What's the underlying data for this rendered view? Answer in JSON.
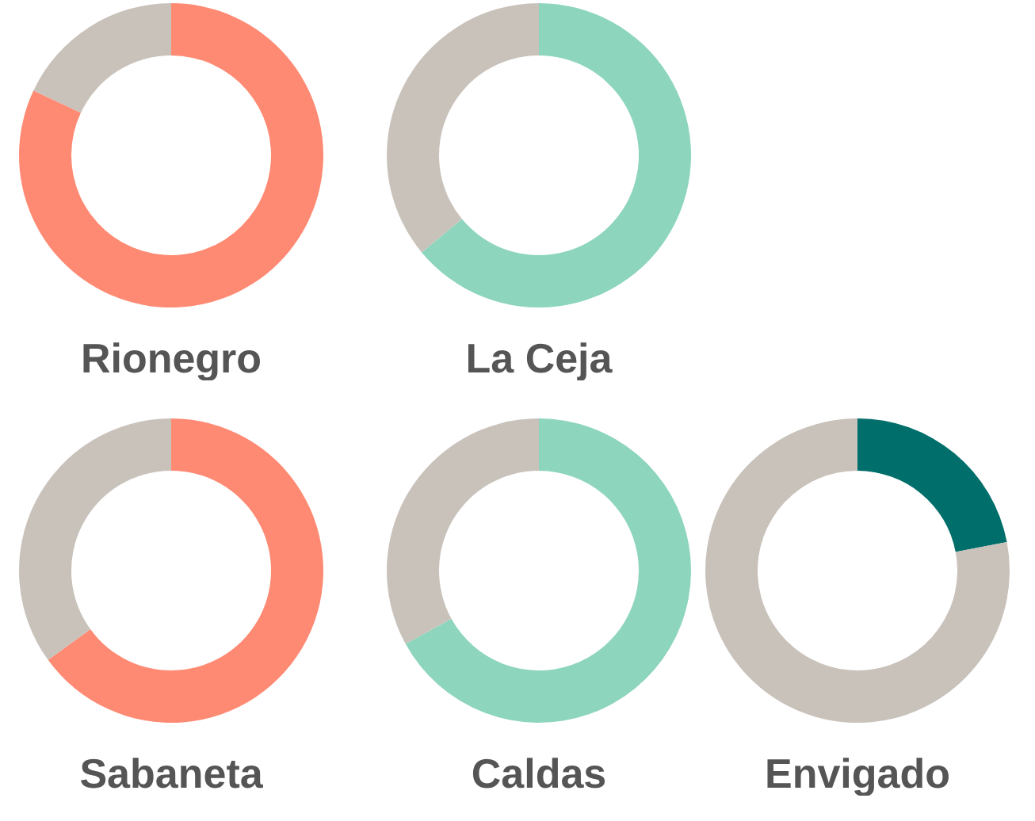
{
  "chart_data": [
    {
      "type": "donut",
      "title": "Rionegro",
      "categories": [
        null,
        null
      ],
      "values": [
        82,
        18
      ],
      "colors": [
        "#ff8a73",
        "#c9c2bb"
      ]
    },
    {
      "type": "donut",
      "title": "La Ceja",
      "categories": [
        null,
        null
      ],
      "values": [
        64,
        36
      ],
      "colors": [
        "#8dd5bc",
        "#c9c2bb"
      ]
    },
    {
      "type": "donut",
      "title": "Sabaneta",
      "categories": [
        null,
        null
      ],
      "values": [
        65,
        35
      ],
      "colors": [
        "#ff8a73",
        "#c9c2bb"
      ]
    },
    {
      "type": "donut",
      "title": "Caldas",
      "categories": [
        null,
        null
      ],
      "values": [
        67,
        33
      ],
      "colors": [
        "#8dd5bc",
        "#c9c2bb"
      ]
    },
    {
      "type": "donut",
      "title": "Envigado",
      "categories": [
        null,
        null
      ],
      "values": [
        22,
        78
      ],
      "colors": [
        "#006e6a",
        "#c9c2bb"
      ]
    }
  ]
}
